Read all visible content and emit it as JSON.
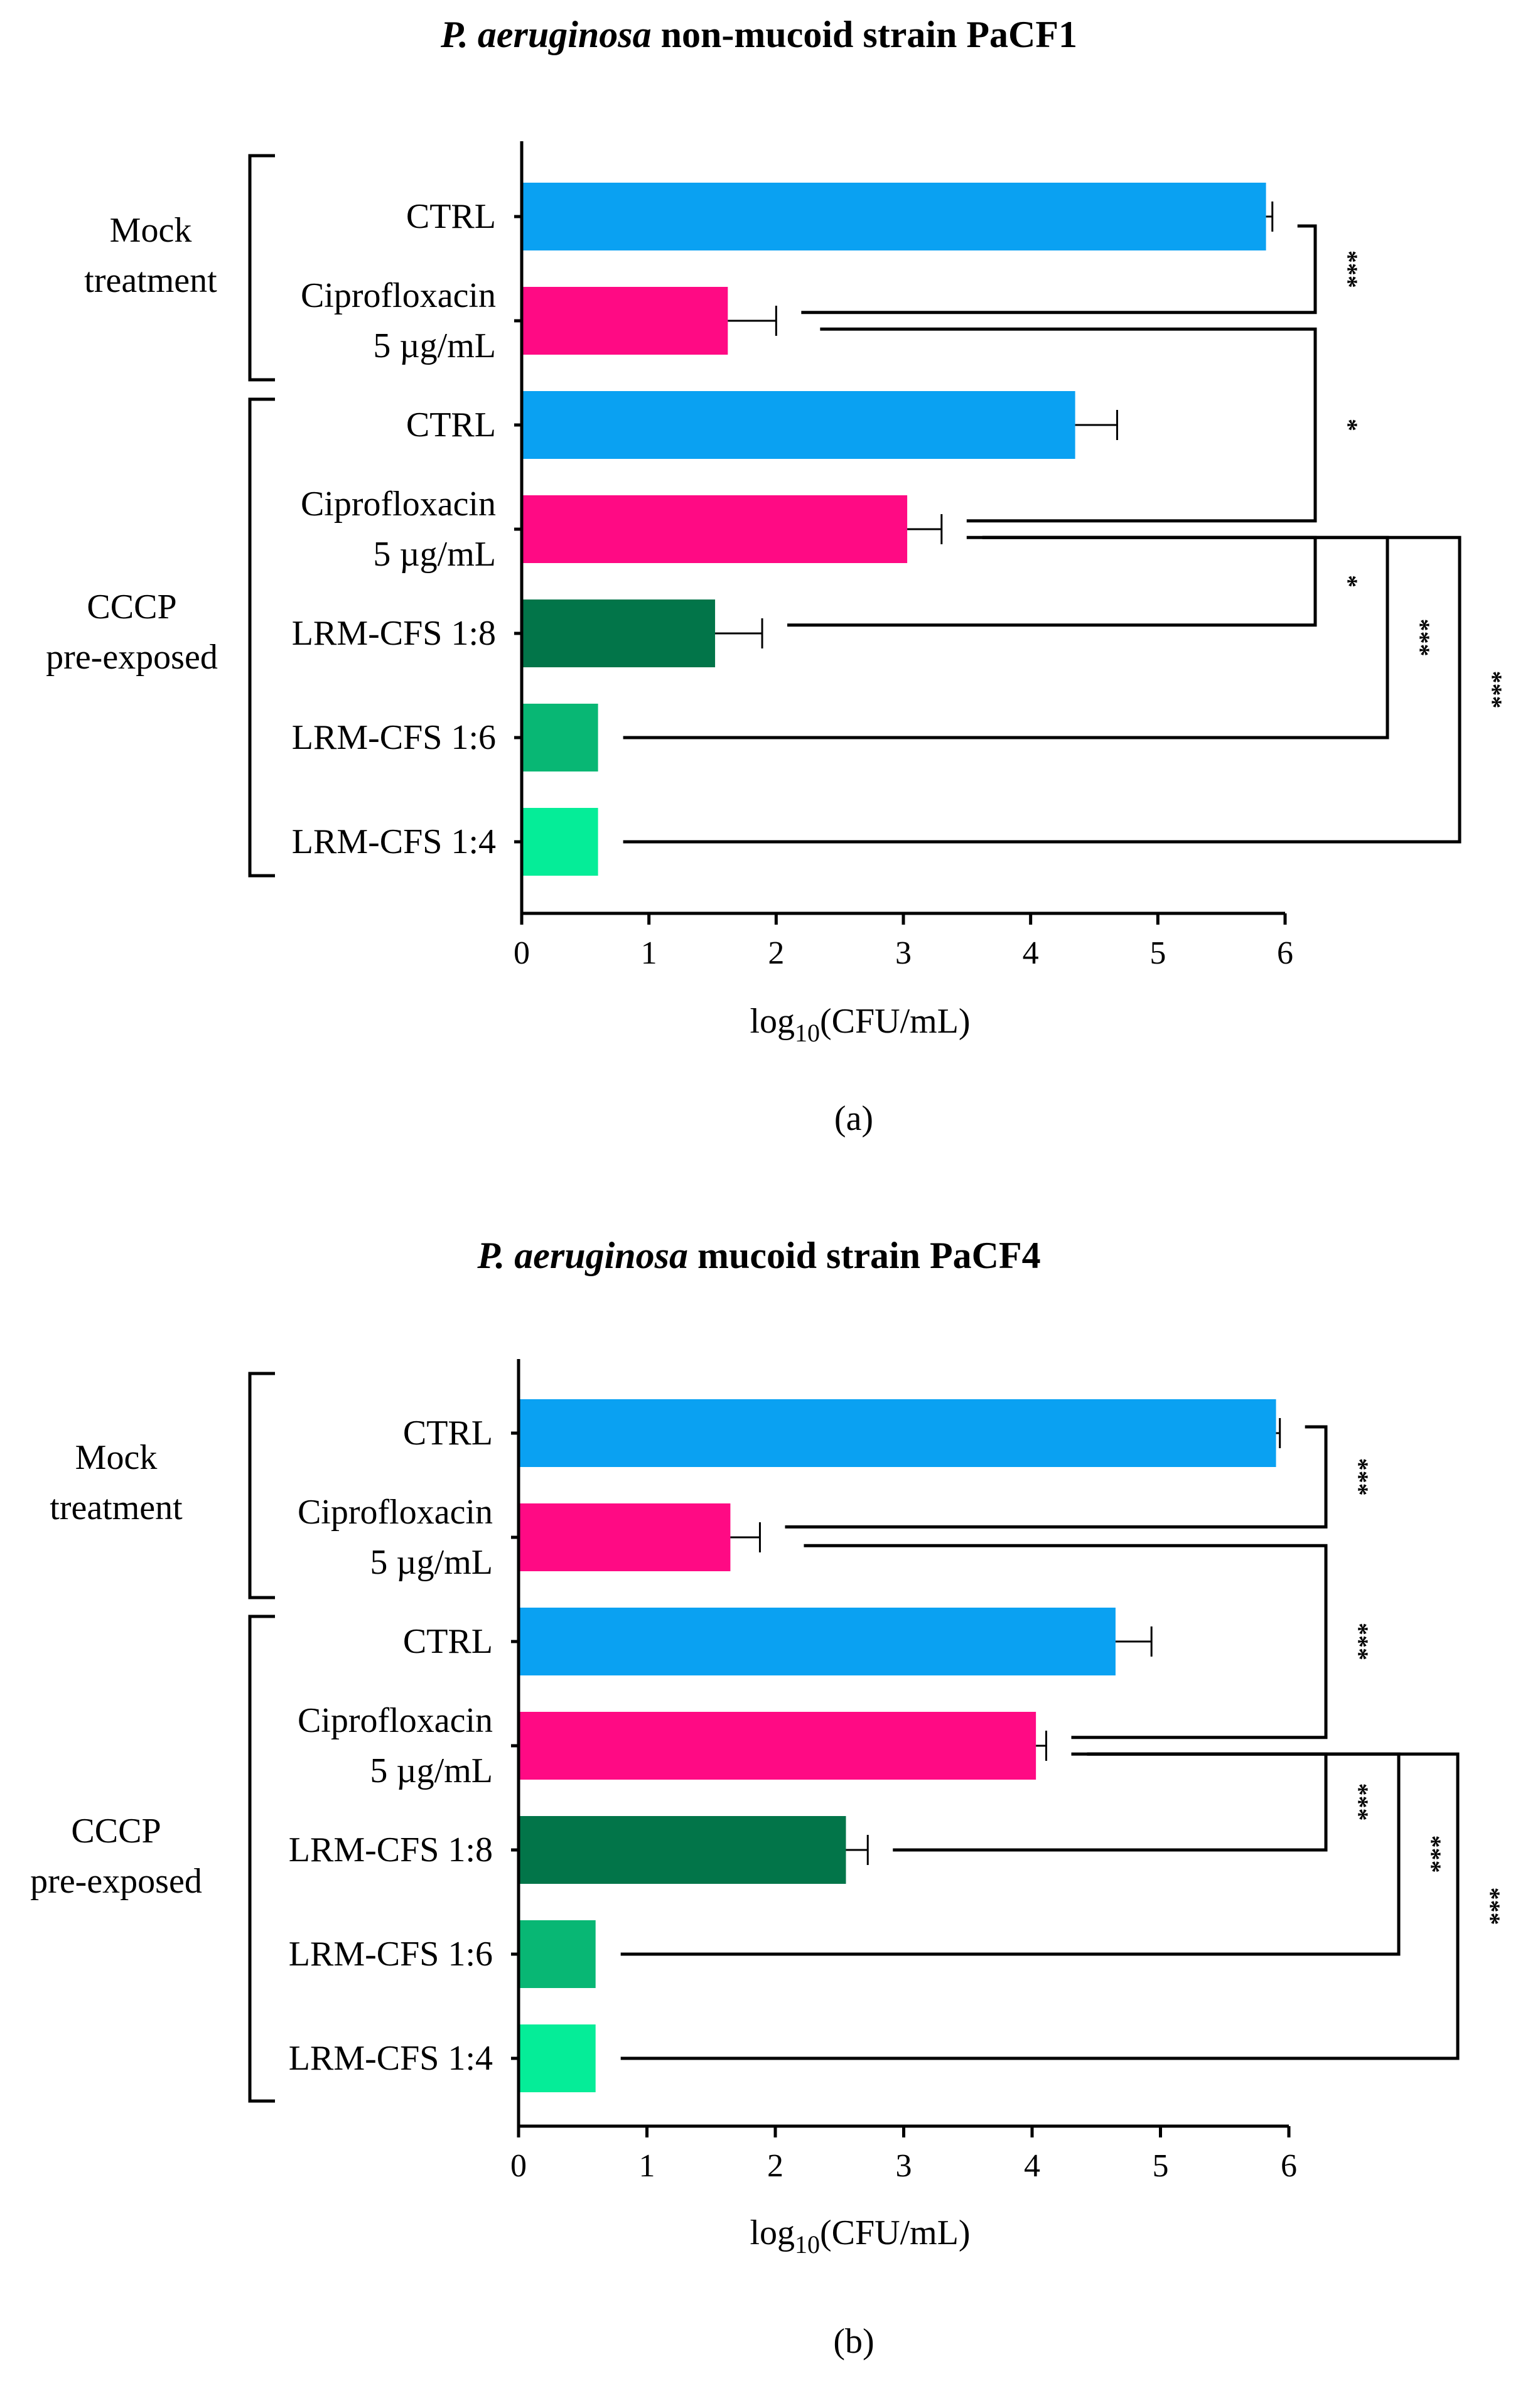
{
  "chart_data": [
    {
      "type": "bar",
      "orientation": "horizontal",
      "panel_label": "(a)",
      "title_italic": "P. aeruginosa",
      "title_rest": "non-mucoid strain PaCF1",
      "xlabel_main": "log",
      "xlabel_sub": "10",
      "xlabel_tail": "(CFU/mL)",
      "xlim": [
        0,
        6
      ],
      "xticks": [
        "0",
        "1",
        "2",
        "3",
        "4",
        "5",
        "6"
      ],
      "groups": [
        {
          "lines": [
            "Mock",
            "treatment"
          ],
          "start": 0,
          "end": 1
        },
        {
          "lines": [
            "CCCP",
            "pre-exposed"
          ],
          "start": 2,
          "end": 6
        }
      ],
      "bars": [
        {
          "label": [
            "CTRL"
          ],
          "value": 5.85,
          "error": 0.05,
          "color": "#0AA1F2"
        },
        {
          "label": [
            "Ciprofloxacin",
            "5 µg/mL"
          ],
          "value": 1.62,
          "error": 0.38,
          "color": "#FF0A84"
        },
        {
          "label": [
            "CTRL"
          ],
          "value": 4.35,
          "error": 0.33,
          "color": "#0AA1F2"
        },
        {
          "label": [
            "Ciprofloxacin",
            "5 µg/mL"
          ],
          "value": 3.03,
          "error": 0.27,
          "color": "#FF0A84"
        },
        {
          "label": [
            "LRM-CFS 1:8"
          ],
          "value": 1.52,
          "error": 0.37,
          "color": "#027549"
        },
        {
          "label": [
            "LRM-CFS 1:6"
          ],
          "value": 0.6,
          "error": 0,
          "color": "#08B774"
        },
        {
          "label": [
            "LRM-CFS 1:4"
          ],
          "value": 0.6,
          "error": 0,
          "color": "#05ED98"
        }
      ],
      "comparisons": [
        {
          "a": 0,
          "b": 1,
          "text": "***"
        },
        {
          "a": 1,
          "b": 3,
          "text": "*"
        },
        {
          "a": 3,
          "b": 4,
          "text": "*"
        },
        {
          "a": 3,
          "b": 5,
          "text": "***"
        },
        {
          "a": 3,
          "b": 6,
          "text": "***"
        }
      ]
    },
    {
      "type": "bar",
      "orientation": "horizontal",
      "panel_label": "(b)",
      "title_italic": "P. aeruginosa",
      "title_rest": "mucoid strain PaCF4",
      "xlabel_main": "log",
      "xlabel_sub": "10",
      "xlabel_tail": "(CFU/mL)",
      "xlim": [
        0,
        6
      ],
      "xticks": [
        "0",
        "1",
        "2",
        "3",
        "4",
        "5",
        "6"
      ],
      "groups": [
        {
          "lines": [
            "Mock",
            "treatment"
          ],
          "start": 0,
          "end": 1
        },
        {
          "lines": [
            "CCCP",
            "pre-exposed"
          ],
          "start": 2,
          "end": 6
        }
      ],
      "bars": [
        {
          "label": [
            "CTRL"
          ],
          "value": 5.9,
          "error": 0.03,
          "color": "#0AA1F2"
        },
        {
          "label": [
            "Ciprofloxacin",
            "5 µg/mL"
          ],
          "value": 1.65,
          "error": 0.23,
          "color": "#FF0A84"
        },
        {
          "label": [
            "CTRL"
          ],
          "value": 4.65,
          "error": 0.28,
          "color": "#0AA1F2"
        },
        {
          "label": [
            "Ciprofloxacin",
            "5 µg/mL"
          ],
          "value": 4.03,
          "error": 0.08,
          "color": "#FF0A84"
        },
        {
          "label": [
            "LRM-CFS 1:8"
          ],
          "value": 2.55,
          "error": 0.17,
          "color": "#027549"
        },
        {
          "label": [
            "LRM-CFS 1:6"
          ],
          "value": 0.6,
          "error": 0,
          "color": "#08B774"
        },
        {
          "label": [
            "LRM-CFS 1:4"
          ],
          "value": 0.6,
          "error": 0,
          "color": "#05ED98"
        }
      ],
      "comparisons": [
        {
          "a": 0,
          "b": 1,
          "text": "***"
        },
        {
          "a": 1,
          "b": 3,
          "text": "***"
        },
        {
          "a": 3,
          "b": 4,
          "text": "***"
        },
        {
          "a": 3,
          "b": 5,
          "text": "***"
        },
        {
          "a": 3,
          "b": 6,
          "text": "***"
        }
      ]
    }
  ]
}
